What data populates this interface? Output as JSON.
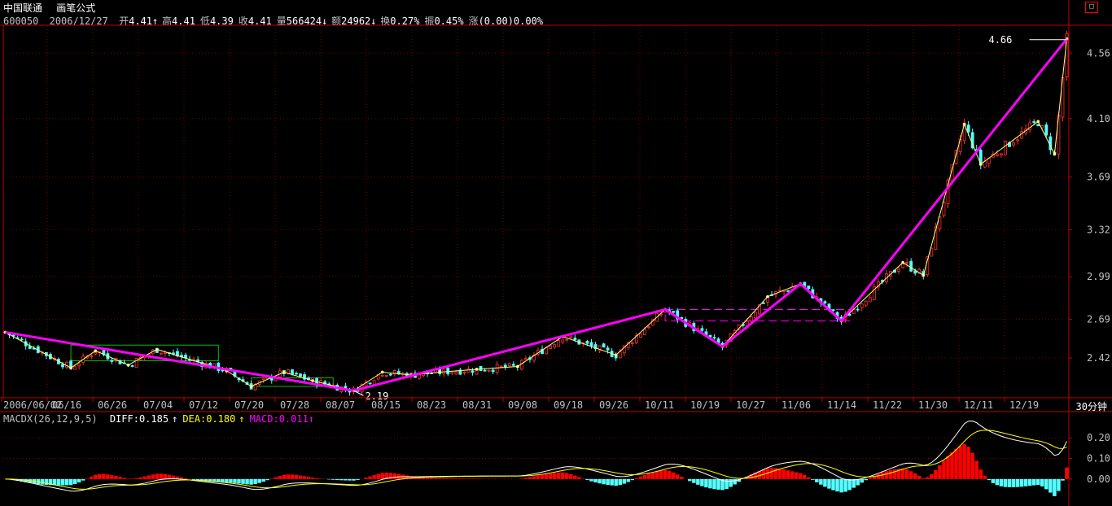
{
  "header": {
    "stock_name": "中国联通",
    "formula_name": "画笔公式",
    "code": "600050",
    "date": "2006/12/27",
    "quote": [
      {
        "label": "开",
        "value": "4.41",
        "arrow": "↑"
      },
      {
        "label": "高",
        "value": "4.41",
        "arrow": ""
      },
      {
        "label": "低",
        "value": "4.39",
        "arrow": ""
      },
      {
        "label": "收",
        "value": "4.41",
        "arrow": ""
      },
      {
        "label": "量",
        "value": "566424",
        "arrow": "↓"
      },
      {
        "label": "额",
        "value": "24962",
        "arrow": "↓"
      },
      {
        "label": "换",
        "value": "0.27%",
        "arrow": ""
      },
      {
        "label": "振",
        "value": "0.45%",
        "arrow": ""
      },
      {
        "label": "涨",
        "value": "(0.00)0.00%",
        "arrow": ""
      }
    ]
  },
  "macd_header": {
    "indicator": "MACDX(26,12,9,5)",
    "diff": "DIFF:0.185",
    "diff_arrow": "↑",
    "dea": "DEA:0.180",
    "dea_arrow": "↑",
    "macd": "MACD:0.011",
    "macd_arrow": "↑"
  },
  "period_label": "30分钟",
  "maximize_glyph": "□",
  "colors": {
    "background": "#000000",
    "axis": "#c00000",
    "grid": "#7a0000",
    "trend": "#ff00ff",
    "zigzag": "#ffff80",
    "candle_up": "#ff3030",
    "candle_down": "#54ffff",
    "box": "#00c000",
    "macd_pos": "#ff0000",
    "macd_neg": "#54ffff",
    "diff_line": "#ffffff",
    "dea_line": "#ffff00"
  },
  "chart_data": {
    "type": "candlestick",
    "title": "中国联通 30分钟 画笔公式",
    "y_ticks": [
      "2.42",
      "2.69",
      "2.99",
      "3.32",
      "3.69",
      "4.10",
      "4.56"
    ],
    "y_range": [
      2.14,
      4.75
    ],
    "x_labels": [
      "2006/06/02",
      "06/16",
      "06/26",
      "07/04",
      "07/12",
      "07/20",
      "07/28",
      "08/07",
      "08/15",
      "08/23",
      "08/31",
      "09/08",
      "09/18",
      "09/26",
      "10/11",
      "10/19",
      "10/27",
      "11/06",
      "11/14",
      "11/22",
      "11/30",
      "12/11",
      "12/19"
    ],
    "bar_count": 260,
    "annotations": [
      {
        "text": "2.19",
        "bar": 85,
        "value": 2.19
      },
      {
        "text": "4.66",
        "bar": 259,
        "value": 4.66
      }
    ],
    "trend_pivots": [
      {
        "bar": 0,
        "value": 2.6
      },
      {
        "bar": 85,
        "value": 2.19
      },
      {
        "bar": 161,
        "value": 2.76
      },
      {
        "bar": 175,
        "value": 2.5
      },
      {
        "bar": 194,
        "value": 2.94
      },
      {
        "bar": 204,
        "value": 2.68
      },
      {
        "bar": 259,
        "value": 4.66
      }
    ],
    "zigzag_points": [
      {
        "bar": 0,
        "value": 2.6
      },
      {
        "bar": 16,
        "value": 2.35
      },
      {
        "bar": 22,
        "value": 2.47
      },
      {
        "bar": 30,
        "value": 2.37
      },
      {
        "bar": 37,
        "value": 2.48
      },
      {
        "bar": 54,
        "value": 2.33
      },
      {
        "bar": 60,
        "value": 2.22
      },
      {
        "bar": 68,
        "value": 2.32
      },
      {
        "bar": 75,
        "value": 2.26
      },
      {
        "bar": 85,
        "value": 2.19
      },
      {
        "bar": 92,
        "value": 2.32
      },
      {
        "bar": 99,
        "value": 2.3
      },
      {
        "bar": 106,
        "value": 2.32
      },
      {
        "bar": 115,
        "value": 2.34
      },
      {
        "bar": 125,
        "value": 2.36
      },
      {
        "bar": 136,
        "value": 2.57
      },
      {
        "bar": 149,
        "value": 2.44
      },
      {
        "bar": 161,
        "value": 2.76
      },
      {
        "bar": 175,
        "value": 2.5
      },
      {
        "bar": 186,
        "value": 2.85
      },
      {
        "bar": 194,
        "value": 2.94
      },
      {
        "bar": 204,
        "value": 2.68
      },
      {
        "bar": 219,
        "value": 3.09
      },
      {
        "bar": 224,
        "value": 3.0
      },
      {
        "bar": 234,
        "value": 4.06
      },
      {
        "bar": 238,
        "value": 3.78
      },
      {
        "bar": 252,
        "value": 4.08
      },
      {
        "bar": 256,
        "value": 3.85
      },
      {
        "bar": 259,
        "value": 4.66
      }
    ],
    "boxes": [
      {
        "color": "green",
        "bar_start": 16,
        "bar_end": 52,
        "value_low": 2.4,
        "value_high": 2.51
      },
      {
        "color": "green",
        "bar_start": 60,
        "bar_end": 80,
        "value_low": 2.22,
        "value_high": 2.28
      },
      {
        "color": "magenta-dashed",
        "bar_start": 161,
        "bar_end": 206,
        "value_low": 2.68,
        "value_high": 2.76
      }
    ],
    "macd": {
      "y_ticks": [
        "0.20",
        "0.10",
        "0.00"
      ],
      "y_range": [
        -0.06,
        0.28
      ],
      "diff": 0.185,
      "dea": 0.18,
      "macd": 0.011
    }
  }
}
